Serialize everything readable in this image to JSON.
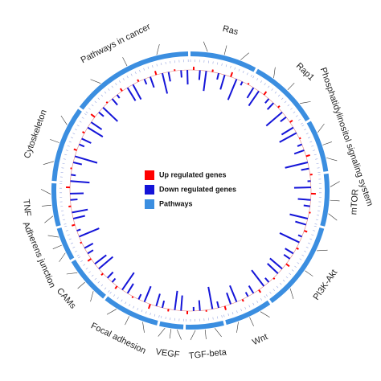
{
  "chart_data": {
    "type": "circos",
    "segments": [
      {
        "name": "Ras",
        "size": 28
      },
      {
        "name": "Rap1",
        "size": 30
      },
      {
        "name": "Phosphatidylinositol signaling system",
        "size": 22
      },
      {
        "name": "mTOR",
        "size": 22
      },
      {
        "name": "PI3K-Akt",
        "size": 38
      },
      {
        "name": "Wnt",
        "size": 20
      },
      {
        "name": "TGF-beta",
        "size": 16
      },
      {
        "name": "VEGF",
        "size": 10
      },
      {
        "name": "Focal adhesion",
        "size": 24
      },
      {
        "name": "CAMs",
        "size": 20
      },
      {
        "name": "Adherens junction",
        "size": 14
      },
      {
        "name": "TNF",
        "size": 18
      },
      {
        "name": "Cytoskeleton",
        "size": 32
      },
      {
        "name": "Pathways in cancer",
        "size": 52
      }
    ],
    "values": [
      0.4,
      -1.2,
      -2.5,
      0.3,
      -0.8,
      -1.9,
      0.6,
      -2.8,
      -0.5,
      0.2,
      -1.5,
      -2.2,
      0.5,
      -0.7,
      -1.1,
      0.3,
      -2.6,
      -0.9,
      0.4,
      -1.7,
      -2.4,
      0.2,
      -0.6,
      -1.3,
      0.5,
      -2.9,
      -1.0,
      0.3,
      -0.4,
      -2.1,
      0.6,
      -1.6,
      -0.8,
      0.2,
      -2.3,
      -1.4,
      0.4,
      -0.5,
      -2.7,
      0.3,
      -1.2,
      -0.9,
      0.5,
      -2.0,
      -1.8,
      0.2,
      -0.7,
      -2.5,
      0.4,
      -1.1,
      -0.6,
      0.3,
      -2.2,
      -1.5,
      0.5,
      -0.8,
      -2.8,
      0.2,
      -1.3,
      -0.5,
      0.4,
      -1.9,
      -2.4,
      0.3,
      -0.9,
      -1.6,
      0.6,
      -2.1,
      -0.7,
      0.2,
      -1.4,
      -2.6,
      0.4,
      -0.6,
      -1.0,
      0.3,
      -2.3,
      -1.8,
      0.5,
      -0.8,
      -1.2,
      0.2,
      -2.7,
      -0.5,
      0.4,
      -1.5,
      -2.0,
      0.3,
      -0.9,
      -1.7,
      0.5,
      -2.4,
      -0.6,
      0.2,
      -1.1,
      -2.9,
      0.4,
      -0.7,
      -1.3,
      0.3,
      -2.2,
      -1.6,
      0.6,
      -0.8,
      -2.5,
      0.2,
      -1.0,
      -0.5,
      0.4,
      -1.9,
      -2.1,
      0.3,
      -0.7,
      -1.4,
      0.5,
      -2.6,
      -1.2,
      0.2,
      -0.9,
      -1.8
    ],
    "legend": [
      {
        "name": "Up regulated genes",
        "color": "#ff0000"
      },
      {
        "name": "Down regulated genes",
        "color": "#1414d8"
      },
      {
        "name": "Pathways",
        "color": "#3b8ee0"
      }
    ]
  }
}
